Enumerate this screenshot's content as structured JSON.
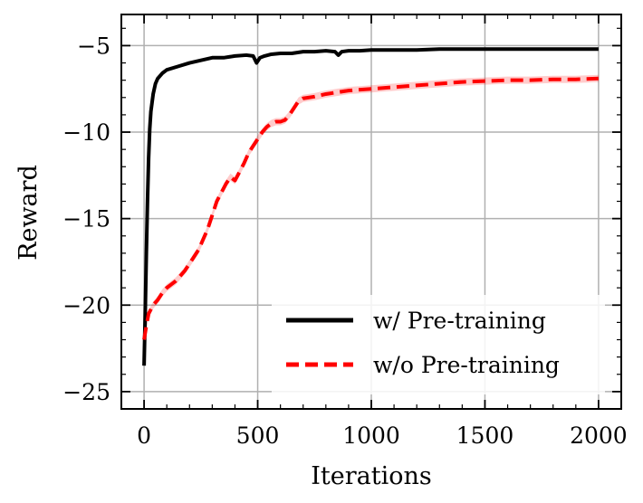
{
  "chart_data": {
    "type": "line",
    "title": "",
    "xlabel": "Iterations",
    "ylabel": "Reward",
    "xlim": [
      -100,
      2100
    ],
    "ylim": [
      -26,
      -3.2
    ],
    "x_ticks": [
      0,
      500,
      1000,
      1500,
      2000
    ],
    "x_tick_labels": [
      "0",
      "500",
      "1000",
      "1500",
      "2000"
    ],
    "y_ticks": [
      -25,
      -20,
      -15,
      -10,
      -5
    ],
    "y_tick_labels": [
      "−25",
      "−20",
      "−15",
      "−10",
      "−5"
    ],
    "grid": true,
    "legend_position": "bottom-right",
    "series": [
      {
        "name": "w/ Pre-training",
        "color": "#000000",
        "style": "solid",
        "x": [
          0,
          5,
          10,
          15,
          20,
          25,
          30,
          40,
          50,
          60,
          80,
          100,
          150,
          200,
          250,
          300,
          350,
          400,
          450,
          480,
          495,
          500,
          510,
          530,
          560,
          600,
          650,
          700,
          750,
          800,
          840,
          855,
          870,
          900,
          950,
          1000,
          1100,
          1200,
          1300,
          1400,
          1500,
          1600,
          1700,
          1800,
          1900,
          2000
        ],
        "y": [
          -23.5,
          -20.5,
          -17,
          -14,
          -11.5,
          -9.8,
          -8.8,
          -7.8,
          -7.2,
          -6.9,
          -6.6,
          -6.4,
          -6.2,
          -6.0,
          -5.85,
          -5.7,
          -5.7,
          -5.6,
          -5.55,
          -5.6,
          -6.0,
          -5.9,
          -5.7,
          -5.6,
          -5.5,
          -5.45,
          -5.45,
          -5.35,
          -5.35,
          -5.3,
          -5.35,
          -5.55,
          -5.35,
          -5.3,
          -5.3,
          -5.25,
          -5.25,
          -5.25,
          -5.2,
          -5.2,
          -5.2,
          -5.2,
          -5.2,
          -5.2,
          -5.2,
          -5.2
        ]
      },
      {
        "name": "w/o Pre-training",
        "color": "#ff0000",
        "style": "dashed",
        "x": [
          0,
          10,
          20,
          40,
          60,
          80,
          100,
          120,
          140,
          160,
          180,
          200,
          220,
          240,
          260,
          280,
          300,
          320,
          340,
          360,
          380,
          400,
          420,
          440,
          460,
          480,
          500,
          520,
          540,
          560,
          580,
          600,
          620,
          640,
          660,
          680,
          700,
          750,
          800,
          900,
          1000,
          1100,
          1200,
          1300,
          1400,
          1500,
          1600,
          1700,
          1800,
          1900,
          2000
        ],
        "y": [
          -22.0,
          -21.2,
          -20.5,
          -20.0,
          -19.7,
          -19.3,
          -19.0,
          -18.8,
          -18.6,
          -18.3,
          -18.0,
          -17.6,
          -17.2,
          -16.8,
          -16.2,
          -15.6,
          -14.8,
          -14.0,
          -13.5,
          -13.0,
          -12.6,
          -12.8,
          -12.3,
          -11.8,
          -11.2,
          -10.8,
          -10.4,
          -10.0,
          -9.7,
          -9.5,
          -9.4,
          -9.4,
          -9.3,
          -9.0,
          -8.6,
          -8.2,
          -8.05,
          -7.95,
          -7.8,
          -7.6,
          -7.5,
          -7.4,
          -7.3,
          -7.2,
          -7.1,
          -7.05,
          -7.0,
          -7.0,
          -6.95,
          -6.95,
          -6.9
        ]
      }
    ]
  }
}
